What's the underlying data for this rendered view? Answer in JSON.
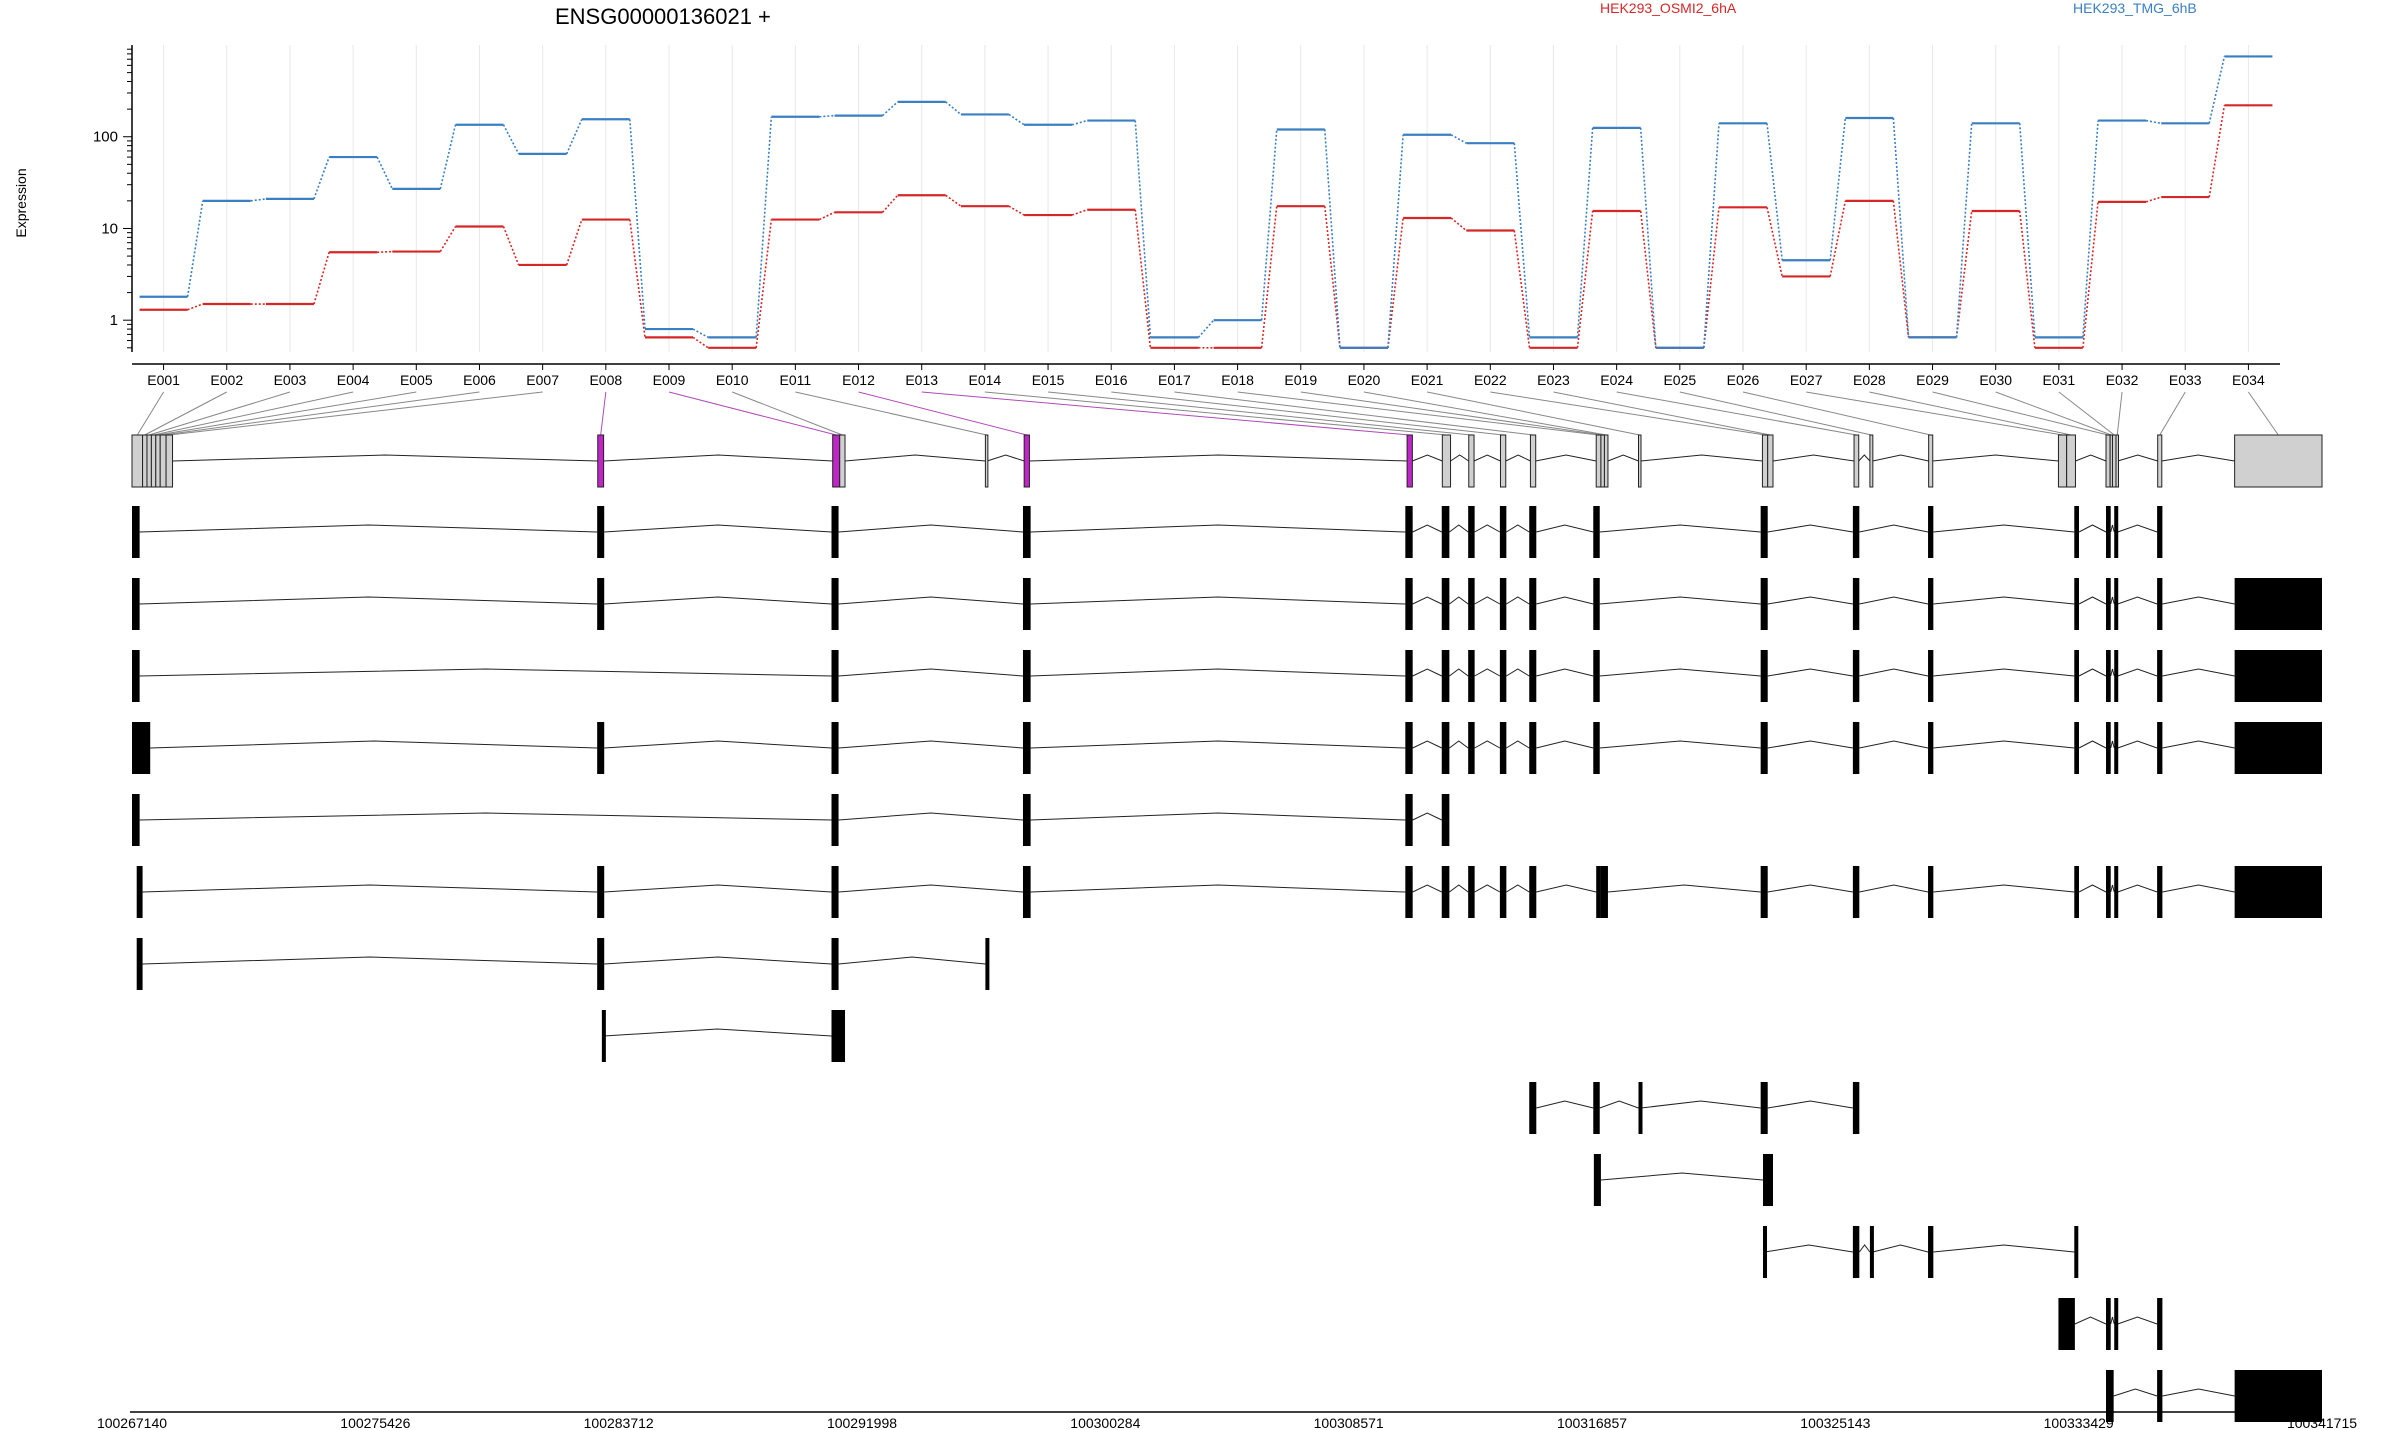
{
  "chart_data": {
    "type": "line",
    "title": "ENSG00000136021 +",
    "ylabel": "Expression",
    "yscale": "log",
    "ylim": [
      0.45,
      1000
    ],
    "grid": true,
    "legend_placement": "top",
    "y_ticks": [
      {
        "value": 1,
        "label": "1"
      },
      {
        "value": 10,
        "label": "10"
      },
      {
        "value": 100,
        "label": "100"
      }
    ],
    "categories": [
      "E001",
      "E002",
      "E003",
      "E004",
      "E005",
      "E006",
      "E007",
      "E008",
      "E009",
      "E010",
      "E011",
      "E012",
      "E013",
      "E014",
      "E015",
      "E016",
      "E017",
      "E018",
      "E019",
      "E020",
      "E021",
      "E022",
      "E023",
      "E024",
      "E025",
      "E026",
      "E027",
      "E028",
      "E029",
      "E030",
      "E031",
      "E032",
      "E033",
      "E034"
    ],
    "series": [
      {
        "name": "HEK293_OSMI2_6hA",
        "color": "#d62728",
        "values": [
          1.3,
          1.5,
          1.5,
          5.5,
          5.6,
          10.5,
          4.0,
          12.5,
          0.65,
          0.5,
          12.5,
          15,
          23,
          17.5,
          14,
          16,
          0.5,
          0.5,
          17.5,
          0.5,
          13,
          9.5,
          0.5,
          15.5,
          0.5,
          17,
          3,
          20,
          0.65,
          15.5,
          0.5,
          19.5,
          22,
          220
        ]
      },
      {
        "name": "HEK293_TMG_6hB",
        "color": "#3a7fc1",
        "values": [
          1.8,
          20,
          21,
          60,
          27,
          135,
          65,
          155,
          0.8,
          0.65,
          165,
          170,
          240,
          175,
          135,
          150,
          0.65,
          1.0,
          120,
          0.5,
          105,
          85,
          0.65,
          125,
          0.5,
          140,
          4.5,
          160,
          0.65,
          140,
          0.65,
          150,
          140,
          750
        ]
      }
    ],
    "genome_axis": {
      "start": 100267140,
      "end": 100341715,
      "tick_labels": [
        "100267140",
        "100275426",
        "100283712",
        "100291998",
        "100300284",
        "100308571",
        "100316857",
        "100325143",
        "100333429",
        "100341715"
      ]
    },
    "exon_model": {
      "exons": [
        {
          "s": 100267140,
          "e": 100267500,
          "hl": false
        },
        {
          "s": 100267500,
          "e": 100267650,
          "hl": false
        },
        {
          "s": 100267650,
          "e": 100267800,
          "hl": false
        },
        {
          "s": 100267800,
          "e": 100267950,
          "hl": false
        },
        {
          "s": 100267950,
          "e": 100268100,
          "hl": false
        },
        {
          "s": 100268100,
          "e": 100268300,
          "hl": false
        },
        {
          "s": 100268300,
          "e": 100268520,
          "hl": false
        },
        {
          "s": 100283000,
          "e": 100283200,
          "hl": true
        },
        {
          "s": 100291000,
          "e": 100291240,
          "hl": true
        },
        {
          "s": 100291240,
          "e": 100291420,
          "hl": false
        },
        {
          "s": 100296200,
          "e": 100296260,
          "hl": false
        },
        {
          "s": 100297520,
          "e": 100297700,
          "hl": true
        },
        {
          "s": 100310560,
          "e": 100310740,
          "hl": true
        },
        {
          "s": 100311760,
          "e": 100312040,
          "hl": false
        },
        {
          "s": 100312660,
          "e": 100312840,
          "hl": false
        },
        {
          "s": 100313740,
          "e": 100313920,
          "hl": false
        },
        {
          "s": 100314760,
          "e": 100314940,
          "hl": false
        },
        {
          "s": 100317000,
          "e": 100317160,
          "hl": false
        },
        {
          "s": 100317160,
          "e": 100317280,
          "hl": false
        },
        {
          "s": 100317280,
          "e": 100317400,
          "hl": false
        },
        {
          "s": 100318440,
          "e": 100318520,
          "hl": false
        },
        {
          "s": 100322660,
          "e": 100322840,
          "hl": false
        },
        {
          "s": 100322840,
          "e": 100323020,
          "hl": false
        },
        {
          "s": 100325780,
          "e": 100325940,
          "hl": false
        },
        {
          "s": 100326320,
          "e": 100326420,
          "hl": false
        },
        {
          "s": 100328320,
          "e": 100328460,
          "hl": false
        },
        {
          "s": 100332740,
          "e": 100333020,
          "hl": false
        },
        {
          "s": 100333020,
          "e": 100333320,
          "hl": false
        },
        {
          "s": 100334360,
          "e": 100334500,
          "hl": false
        },
        {
          "s": 100334500,
          "e": 100334580,
          "hl": false
        },
        {
          "s": 100334580,
          "e": 100334700,
          "hl": false
        },
        {
          "s": 100334700,
          "e": 100334760,
          "hl": false
        },
        {
          "s": 100336120,
          "e": 100336260,
          "hl": false
        },
        {
          "s": 100338740,
          "e": 100341715,
          "hl": false
        }
      ]
    },
    "transcripts": [
      {
        "exons": [
          [
            100267140,
            100267400
          ],
          [
            100282980,
            100283220
          ],
          [
            100290960,
            100291200
          ],
          [
            100297480,
            100297740
          ],
          [
            100310500,
            100310750
          ],
          [
            100311740,
            100312000
          ],
          [
            100312640,
            100312860
          ],
          [
            100313720,
            100313940
          ],
          [
            100314720,
            100314960
          ],
          [
            100316900,
            100317120
          ],
          [
            100322600,
            100322840
          ],
          [
            100325740,
            100325960
          ],
          [
            100328300,
            100328480
          ],
          [
            100333280,
            100333440
          ],
          [
            100334360,
            100334520
          ],
          [
            100334640,
            100334760
          ],
          [
            100336100,
            100336280
          ]
        ]
      },
      {
        "exons": [
          [
            100267140,
            100267400
          ],
          [
            100282980,
            100283220
          ],
          [
            100290960,
            100291200
          ],
          [
            100297480,
            100297740
          ],
          [
            100310500,
            100310750
          ],
          [
            100311740,
            100312000
          ],
          [
            100312640,
            100312860
          ],
          [
            100313720,
            100313940
          ],
          [
            100314720,
            100314960
          ],
          [
            100316900,
            100317120
          ],
          [
            100322600,
            100322840
          ],
          [
            100325740,
            100325960
          ],
          [
            100328300,
            100328480
          ],
          [
            100333280,
            100333440
          ],
          [
            100334360,
            100334520
          ],
          [
            100334640,
            100334760
          ],
          [
            100336100,
            100336280
          ],
          [
            100338740,
            100341715
          ]
        ]
      },
      {
        "exons": [
          [
            100267140,
            100267400
          ],
          [
            100290960,
            100291200
          ],
          [
            100297480,
            100297740
          ],
          [
            100310500,
            100310750
          ],
          [
            100311740,
            100312000
          ],
          [
            100312640,
            100312860
          ],
          [
            100313720,
            100313940
          ],
          [
            100314720,
            100314960
          ],
          [
            100316900,
            100317120
          ],
          [
            100322600,
            100322840
          ],
          [
            100325740,
            100325960
          ],
          [
            100328300,
            100328480
          ],
          [
            100333280,
            100333440
          ],
          [
            100334360,
            100334520
          ],
          [
            100334640,
            100334760
          ],
          [
            100336100,
            100336280
          ],
          [
            100338740,
            100341715
          ]
        ]
      },
      {
        "exons": [
          [
            100267140,
            100267760
          ],
          [
            100282980,
            100283220
          ],
          [
            100290960,
            100291200
          ],
          [
            100297480,
            100297740
          ],
          [
            100310500,
            100310750
          ],
          [
            100311740,
            100312000
          ],
          [
            100312640,
            100312860
          ],
          [
            100313720,
            100313940
          ],
          [
            100314720,
            100314960
          ],
          [
            100316900,
            100317120
          ],
          [
            100322600,
            100322840
          ],
          [
            100325740,
            100325960
          ],
          [
            100328300,
            100328480
          ],
          [
            100333280,
            100333440
          ],
          [
            100334360,
            100334520
          ],
          [
            100334640,
            100334760
          ],
          [
            100336100,
            100336280
          ],
          [
            100338740,
            100341715
          ]
        ]
      },
      {
        "exons": [
          [
            100267140,
            100267400
          ],
          [
            100290960,
            100291200
          ],
          [
            100297480,
            100297740
          ],
          [
            100310500,
            100310750
          ],
          [
            100311740,
            100312000
          ]
        ]
      },
      {
        "exons": [
          [
            100267300,
            100267500
          ],
          [
            100282980,
            100283220
          ],
          [
            100290960,
            100291200
          ],
          [
            100297480,
            100297740
          ],
          [
            100310500,
            100310750
          ],
          [
            100311740,
            100312000
          ],
          [
            100312640,
            100312860
          ],
          [
            100313720,
            100313940
          ],
          [
            100314720,
            100314960
          ],
          [
            100317000,
            100317160
          ],
          [
            100317160,
            100317400
          ],
          [
            100322600,
            100322840
          ],
          [
            100325740,
            100325960
          ],
          [
            100328300,
            100328480
          ],
          [
            100333280,
            100333440
          ],
          [
            100334360,
            100334520
          ],
          [
            100334640,
            100334760
          ],
          [
            100336100,
            100336280
          ],
          [
            100338740,
            100341715
          ]
        ]
      },
      {
        "exons": [
          [
            100267300,
            100267500
          ],
          [
            100282980,
            100283220
          ],
          [
            100290960,
            100291200
          ],
          [
            100296200,
            100296260
          ]
        ]
      },
      {
        "exons": [
          [
            100283140,
            100283200
          ],
          [
            100290960,
            100291420
          ]
        ]
      },
      {
        "exons": [
          [
            100314720,
            100314960
          ],
          [
            100316900,
            100317120
          ],
          [
            100318440,
            100318520
          ],
          [
            100322600,
            100322840
          ],
          [
            100325740,
            100325960
          ]
        ]
      },
      {
        "exons": [
          [
            100316920,
            100317160
          ],
          [
            100322680,
            100323020
          ]
        ]
      },
      {
        "exons": [
          [
            100322680,
            100322740
          ],
          [
            100325740,
            100325960
          ],
          [
            100326320,
            100326420
          ],
          [
            100328300,
            100328480
          ],
          [
            100333280,
            100333380
          ]
        ]
      },
      {
        "exons": [
          [
            100332740,
            100333300
          ],
          [
            100334360,
            100334520
          ],
          [
            100334640,
            100334760
          ],
          [
            100336100,
            100336280
          ]
        ]
      },
      {
        "exons": [
          [
            100334360,
            100334620
          ],
          [
            100336100,
            100336280
          ],
          [
            100338740,
            100341715
          ]
        ]
      }
    ]
  }
}
